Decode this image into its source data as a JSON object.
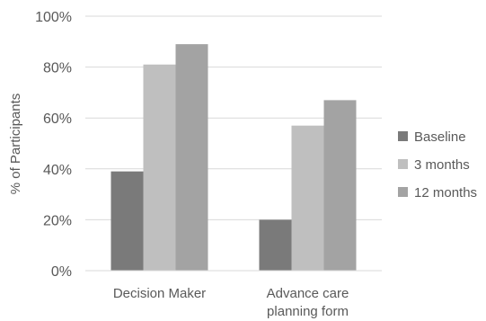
{
  "chart_data": {
    "type": "bar",
    "title": "",
    "xlabel": "",
    "ylabel": "% of Participants",
    "ylim": [
      0,
      100
    ],
    "yticks": [
      0,
      20,
      40,
      60,
      80,
      100
    ],
    "ytick_labels": [
      "0%",
      "20%",
      "40%",
      "60%",
      "80%",
      "100%"
    ],
    "categories": [
      [
        "Decision Maker"
      ],
      [
        "Advance care",
        "planning form"
      ]
    ],
    "series": [
      {
        "name": "Baseline",
        "color": "#7a7a7a",
        "values": [
          39,
          20
        ]
      },
      {
        "name": "3 months",
        "color": "#bfbfbf",
        "values": [
          81,
          57
        ]
      },
      {
        "name": "12 months",
        "color": "#a3a3a3",
        "values": [
          89,
          67
        ]
      }
    ],
    "grid": true,
    "legend": "right"
  }
}
